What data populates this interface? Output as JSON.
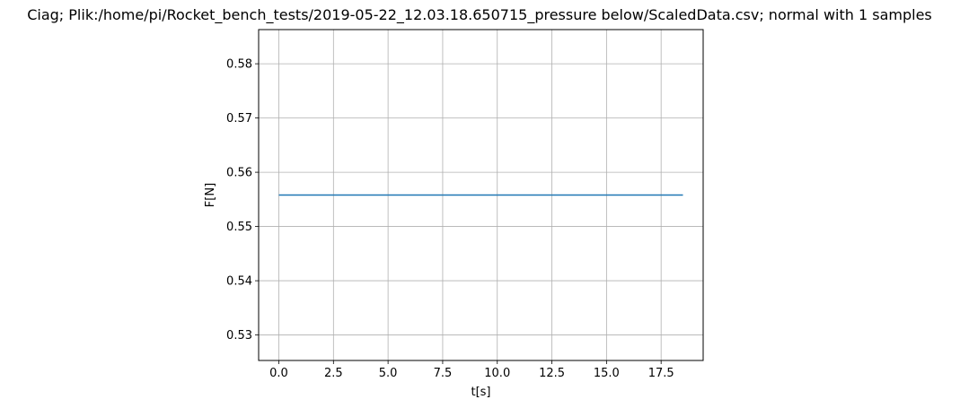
{
  "chart_data": {
    "type": "line",
    "title": "Ciag; Plik:/home/pi/Rocket_bench_tests/2019-05-22_12.03.18.650715_pressure below/ScaledData.csv; normal with 1 samples",
    "xlabel": "t[s]",
    "ylabel": "F[N]",
    "xlim": [
      -0.925,
      19.425
    ],
    "ylim": [
      0.5253,
      0.5863
    ],
    "grid": true,
    "x_ticks": [
      0.0,
      2.5,
      5.0,
      7.5,
      10.0,
      12.5,
      15.0,
      17.5
    ],
    "x_tick_labels": [
      "0.0",
      "2.5",
      "5.0",
      "7.5",
      "10.0",
      "12.5",
      "15.0",
      "17.5"
    ],
    "y_ticks": [
      0.53,
      0.54,
      0.55,
      0.56,
      0.57,
      0.58
    ],
    "y_tick_labels": [
      "0.53",
      "0.54",
      "0.55",
      "0.56",
      "0.57",
      "0.58"
    ],
    "series": [
      {
        "color": "#1f77b4",
        "x": [
          0.0,
          18.5
        ],
        "y": [
          0.5558,
          0.5558
        ]
      }
    ]
  }
}
